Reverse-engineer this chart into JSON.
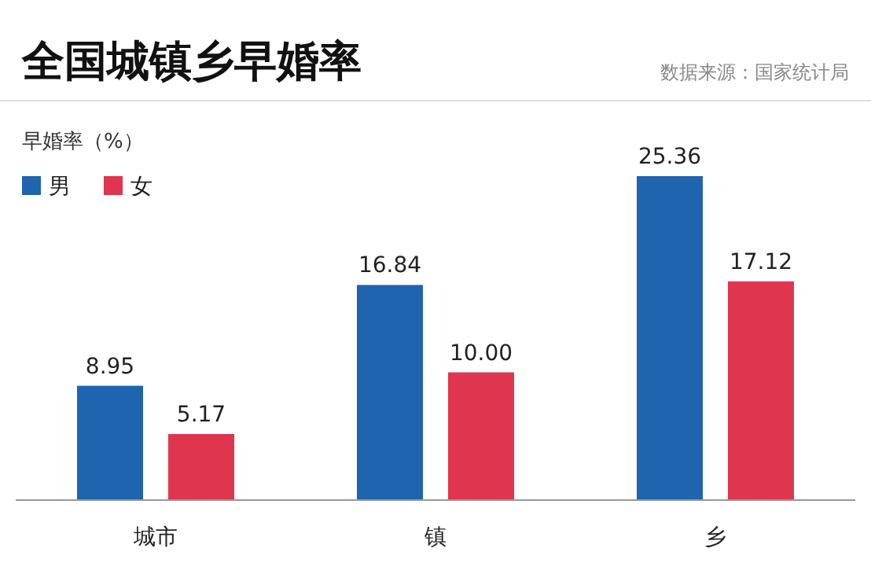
{
  "chart_data": {
    "type": "bar",
    "title": "全国城镇乡早婚率",
    "annotations": [
      "数据来源：国家统计局"
    ],
    "ylabel": "早婚率（%）",
    "legend": "top left",
    "categories": [
      "城市",
      "镇",
      "乡"
    ],
    "series": [
      {
        "name": "男",
        "color": "#1e64ae",
        "values": [
          8.95,
          16.84,
          25.36
        ],
        "value_labels": [
          "8.95",
          "16.84",
          "25.36"
        ]
      },
      {
        "name": "女",
        "color": "#e0354f",
        "values": [
          5.17,
          10.0,
          17.12
        ],
        "value_labels": [
          "5.17",
          "10.00",
          "17.12"
        ]
      }
    ]
  }
}
